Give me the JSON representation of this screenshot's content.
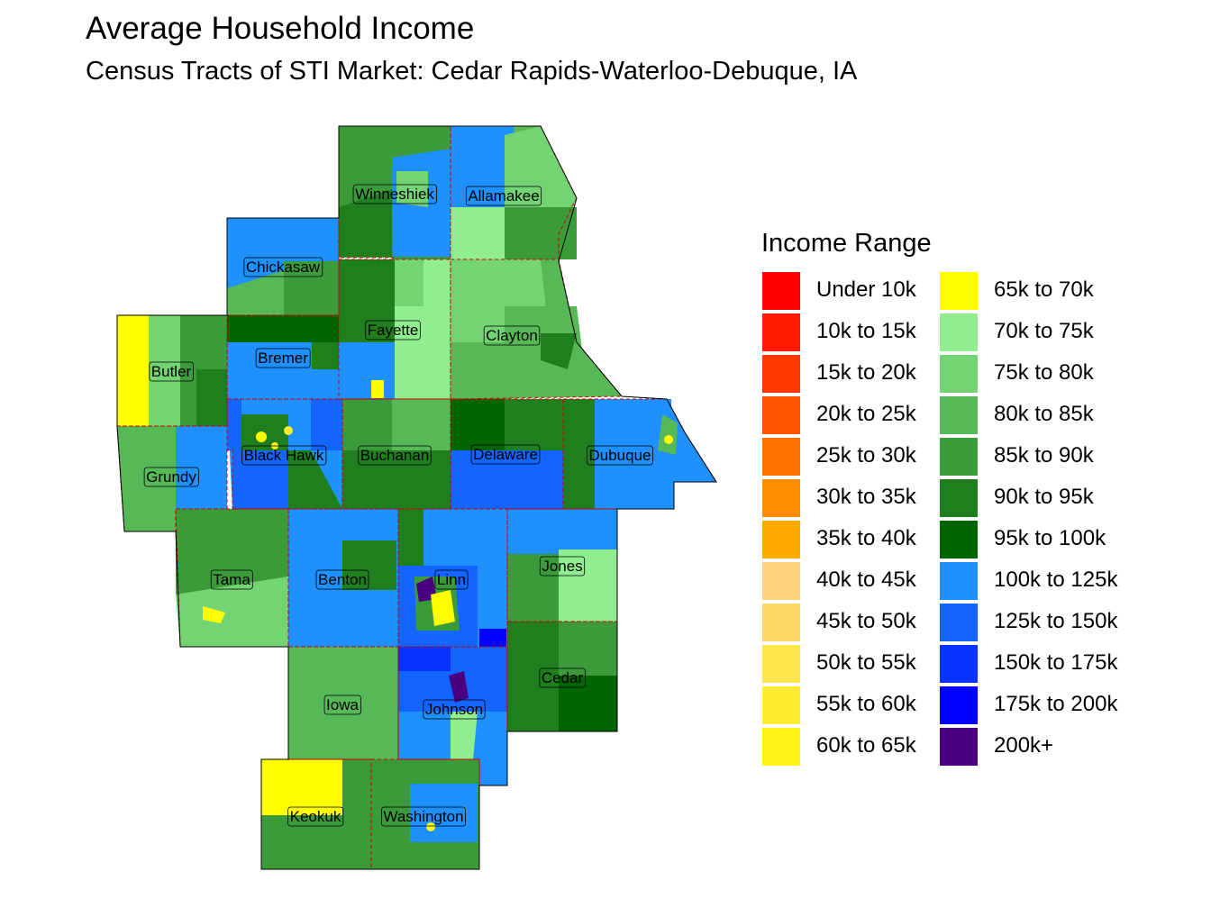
{
  "title": "Average Household Income",
  "subtitle": "Census Tracts of STI Market: Cedar Rapids-Waterloo-Debuque, IA",
  "legend": {
    "title": "Income Range",
    "items": [
      {
        "label": "Under 10k",
        "color": "#ff0000"
      },
      {
        "label": "10k to 15k",
        "color": "#ff1c00"
      },
      {
        "label": "15k to 20k",
        "color": "#ff3800"
      },
      {
        "label": "20k to 25k",
        "color": "#ff5500"
      },
      {
        "label": "25k to 30k",
        "color": "#ff7100"
      },
      {
        "label": "30k to 35k",
        "color": "#ff8d00"
      },
      {
        "label": "35k to 40k",
        "color": "#ffaa00"
      },
      {
        "label": "40k to 45k",
        "color": "#ffd27f"
      },
      {
        "label": "45k to 50k",
        "color": "#ffd966"
      },
      {
        "label": "50k to 55k",
        "color": "#ffe44d"
      },
      {
        "label": "55k to 60k",
        "color": "#ffec33"
      },
      {
        "label": "60k to 65k",
        "color": "#fff41a"
      },
      {
        "label": "65k to 70k",
        "color": "#ffff00"
      },
      {
        "label": "70k to 75k",
        "color": "#90ee90"
      },
      {
        "label": "75k to 80k",
        "color": "#74d474"
      },
      {
        "label": "80k to 85k",
        "color": "#57b857"
      },
      {
        "label": "85k to 90k",
        "color": "#3b9b3b"
      },
      {
        "label": "90k to 95k",
        "color": "#1f7f1f"
      },
      {
        "label": "95k to 100k",
        "color": "#006400"
      },
      {
        "label": "100k to 125k",
        "color": "#1e90ff"
      },
      {
        "label": "125k to 150k",
        "color": "#1464ff"
      },
      {
        "label": "150k to 175k",
        "color": "#0a32ff"
      },
      {
        "label": "175k to 200k",
        "color": "#0000ff"
      },
      {
        "label": "200k+",
        "color": "#4b0082"
      }
    ]
  },
  "counties": [
    {
      "name": "Winneshiek",
      "fill": "#3b9b3b"
    },
    {
      "name": "Allamakee",
      "fill": "#57b857"
    },
    {
      "name": "Chickasaw",
      "fill": "#1e90ff"
    },
    {
      "name": "Fayette",
      "fill": "#1f7f1f"
    },
    {
      "name": "Clayton",
      "fill": "#57b857"
    },
    {
      "name": "Butler",
      "fill": "#3b9b3b"
    },
    {
      "name": "Bremer",
      "fill": "#1e90ff"
    },
    {
      "name": "Black Hawk",
      "fill": "#1e90ff"
    },
    {
      "name": "Buchanan",
      "fill": "#3b9b3b"
    },
    {
      "name": "Delaware",
      "fill": "#1464ff"
    },
    {
      "name": "Dubuque",
      "fill": "#1e90ff"
    },
    {
      "name": "Grundy",
      "fill": "#3b9b3b"
    },
    {
      "name": "Tama",
      "fill": "#57b857"
    },
    {
      "name": "Benton",
      "fill": "#1e90ff"
    },
    {
      "name": "Linn",
      "fill": "#1e90ff"
    },
    {
      "name": "Jones",
      "fill": "#1e90ff"
    },
    {
      "name": "Iowa",
      "fill": "#57b857"
    },
    {
      "name": "Johnson",
      "fill": "#1e90ff"
    },
    {
      "name": "Cedar",
      "fill": "#1f7f1f"
    },
    {
      "name": "Keokuk",
      "fill": "#3b9b3b"
    },
    {
      "name": "Washington",
      "fill": "#3b9b3b"
    }
  ]
}
